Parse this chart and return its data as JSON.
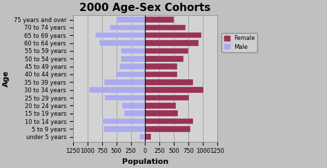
{
  "title": "2000 Age-Sex Cohorts",
  "xlabel": "Population",
  "ylabel": "Age",
  "age_groups": [
    "75 years and over",
    "70 to 74 years",
    "65 to 69 years",
    "60 to 64 years",
    "55 to 59 years",
    "50 to 54 years",
    "45 to 49 years",
    "40 to 44 years",
    "35 to 39 years",
    "30 to 34 years",
    "25 to 29 years",
    "20 to 24 years",
    "15 to 19 years",
    "10 to 14 years",
    "5 to 9 years",
    "under 5 years"
  ],
  "male": [
    480,
    620,
    870,
    800,
    430,
    420,
    450,
    510,
    710,
    980,
    700,
    400,
    370,
    750,
    720,
    100
  ],
  "female": [
    500,
    700,
    980,
    930,
    750,
    660,
    560,
    560,
    830,
    1010,
    760,
    530,
    570,
    830,
    780,
    100
  ],
  "male_color": "#aaaaee",
  "female_color": "#993355",
  "bg_color": "#c0c0c0",
  "plot_bg_color": "#d3d3d3",
  "xlim": 1250,
  "title_fontsize": 11,
  "axis_label_fontsize": 8,
  "tick_fontsize": 6,
  "legend_female_label": "Female",
  "legend_male_label": "Male"
}
